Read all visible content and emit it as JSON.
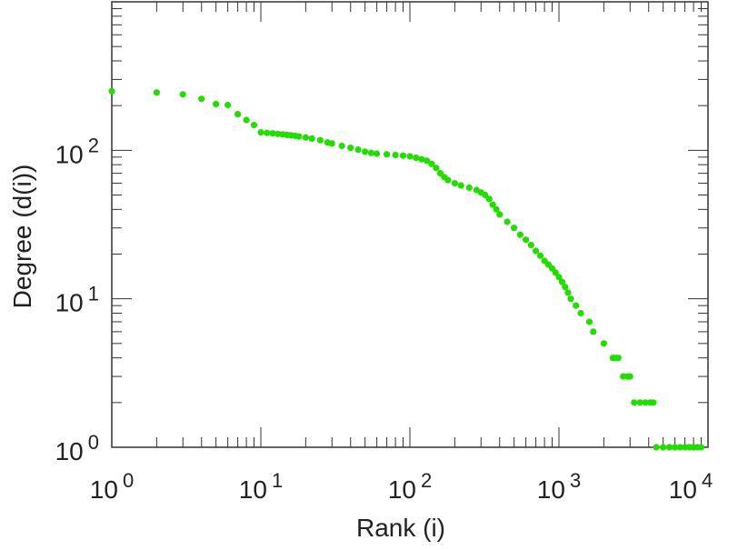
{
  "chart_data": {
    "type": "scatter",
    "xlabel": "Rank (i)",
    "ylabel": "Degree (d(i))",
    "xscale": "log",
    "yscale": "log",
    "xlim": [
      1,
      10000
    ],
    "ylim": [
      1,
      1000
    ],
    "grid": false,
    "legend": "none",
    "marker_color": "#22dd00",
    "x_ticks": [
      {
        "base": "10",
        "exp": "0",
        "value": 1
      },
      {
        "base": "10",
        "exp": "1",
        "value": 10
      },
      {
        "base": "10",
        "exp": "2",
        "value": 100
      },
      {
        "base": "10",
        "exp": "3",
        "value": 1000
      },
      {
        "base": "10",
        "exp": "4",
        "value": 10000
      }
    ],
    "y_ticks": [
      {
        "base": "10",
        "exp": "0",
        "value": 1
      },
      {
        "base": "10",
        "exp": "1",
        "value": 10
      },
      {
        "base": "10",
        "exp": "2",
        "value": 100
      }
    ],
    "series": [
      {
        "points": [
          [
            1,
            250
          ],
          [
            2,
            245
          ],
          [
            3,
            238
          ],
          [
            4,
            222
          ],
          [
            5,
            205
          ],
          [
            6,
            202
          ],
          [
            7,
            175
          ],
          [
            8,
            160
          ],
          [
            9,
            148
          ],
          [
            10,
            132
          ],
          [
            11,
            131
          ],
          [
            12,
            130
          ],
          [
            13,
            129
          ],
          [
            14,
            128
          ],
          [
            15,
            127
          ],
          [
            16,
            126
          ],
          [
            17,
            125
          ],
          [
            18,
            124
          ],
          [
            20,
            122
          ],
          [
            22,
            120
          ],
          [
            25,
            117
          ],
          [
            28,
            113
          ],
          [
            30,
            111
          ],
          [
            35,
            107
          ],
          [
            40,
            104
          ],
          [
            45,
            101
          ],
          [
            50,
            98
          ],
          [
            55,
            96
          ],
          [
            60,
            95
          ],
          [
            70,
            94
          ],
          [
            80,
            93
          ],
          [
            90,
            92
          ],
          [
            100,
            91
          ],
          [
            110,
            89
          ],
          [
            120,
            87
          ],
          [
            130,
            85
          ],
          [
            140,
            81
          ],
          [
            150,
            76
          ],
          [
            160,
            70
          ],
          [
            170,
            66
          ],
          [
            180,
            63
          ],
          [
            200,
            60
          ],
          [
            220,
            58
          ],
          [
            250,
            56
          ],
          [
            280,
            54
          ],
          [
            300,
            52
          ],
          [
            320,
            50
          ],
          [
            340,
            47
          ],
          [
            360,
            43
          ],
          [
            380,
            40
          ],
          [
            400,
            37
          ],
          [
            450,
            33
          ],
          [
            500,
            30
          ],
          [
            550,
            27
          ],
          [
            600,
            25
          ],
          [
            650,
            23
          ],
          [
            700,
            21
          ],
          [
            750,
            19.5
          ],
          [
            800,
            18
          ],
          [
            850,
            17
          ],
          [
            900,
            16
          ],
          [
            950,
            15
          ],
          [
            1000,
            14
          ],
          [
            1050,
            13
          ],
          [
            1100,
            12
          ],
          [
            1150,
            11
          ],
          [
            1200,
            10
          ],
          [
            1300,
            9
          ],
          [
            1400,
            8
          ],
          [
            1600,
            7
          ],
          [
            1700,
            6
          ],
          [
            2000,
            5
          ],
          [
            2300,
            4
          ],
          [
            2400,
            4
          ],
          [
            2500,
            4
          ],
          [
            2700,
            3
          ],
          [
            2900,
            3
          ],
          [
            3000,
            3
          ],
          [
            3200,
            2
          ],
          [
            3500,
            2
          ],
          [
            3800,
            2
          ],
          [
            4100,
            2
          ],
          [
            4300,
            2
          ],
          [
            4500,
            1
          ],
          [
            5000,
            1
          ],
          [
            5500,
            1
          ],
          [
            6000,
            1
          ],
          [
            6500,
            1
          ],
          [
            7000,
            1
          ],
          [
            7500,
            1
          ],
          [
            8000,
            1
          ],
          [
            8500,
            1
          ],
          [
            9000,
            1
          ]
        ]
      }
    ]
  }
}
